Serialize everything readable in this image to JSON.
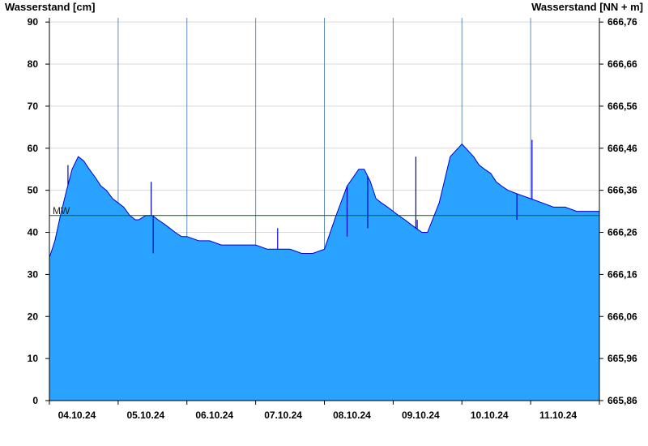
{
  "chart_data": {
    "type": "area",
    "title_left": "Wasserstand [cm]",
    "title_right": "Wasserstand [NN + m]",
    "x_tick_labels": [
      "04.10.24",
      "05.10.24",
      "06.10.24",
      "07.10.24",
      "08.10.24",
      "09.10.24",
      "10.10.24",
      "11.10.24"
    ],
    "x_range_days": [
      0,
      8
    ],
    "y_left_range": [
      0,
      91
    ],
    "y_left_ticks": [
      "0",
      "10",
      "20",
      "30",
      "40",
      "50",
      "60",
      "70",
      "80",
      "90"
    ],
    "y_right_ticks": [
      "665,86",
      "665,96",
      "666,06",
      "666,16",
      "666,26",
      "666,36",
      "666,46",
      "666,56",
      "666,66",
      "666,76"
    ],
    "mw_label": "MW",
    "mw_value": 44,
    "fill_color": "#29a3ff",
    "line_color": "#0000cc",
    "mw_line_color": "#006400",
    "grid": true,
    "series": {
      "x": [
        0.0,
        0.08,
        0.16,
        0.25,
        0.33,
        0.42,
        0.5,
        0.58,
        0.67,
        0.75,
        0.83,
        0.92,
        1.0,
        1.08,
        1.17,
        1.25,
        1.3,
        1.4,
        1.5,
        1.58,
        1.67,
        1.75,
        1.83,
        1.92,
        2.0,
        2.17,
        2.33,
        2.5,
        2.67,
        2.83,
        3.0,
        3.17,
        3.33,
        3.5,
        3.67,
        3.83,
        4.0,
        4.17,
        4.33,
        4.5,
        4.58,
        4.67,
        4.75,
        4.83,
        4.92,
        5.0,
        5.08,
        5.17,
        5.25,
        5.33,
        5.42,
        5.5,
        5.67,
        5.83,
        6.0,
        6.17,
        6.25,
        6.33,
        6.42,
        6.5,
        6.58,
        6.67,
        6.83,
        7.0,
        7.17,
        7.33,
        7.5,
        7.67,
        7.83,
        8.0
      ],
      "y": [
        34,
        38,
        44,
        50,
        55,
        58,
        57,
        55,
        53,
        51,
        50,
        48,
        47,
        46,
        44,
        43,
        43,
        44,
        44,
        43,
        42,
        41,
        40,
        39,
        39,
        38,
        38,
        37,
        37,
        37,
        37,
        36,
        36,
        36,
        35,
        35,
        36,
        44,
        51,
        55,
        55,
        52,
        48,
        47,
        46,
        45,
        44,
        43,
        42,
        41,
        40,
        40,
        47,
        58,
        61,
        58,
        56,
        55,
        54,
        52,
        51,
        50,
        49,
        48,
        47,
        46,
        46,
        45,
        45,
        45
      ]
    },
    "spikes": [
      {
        "x": 0.27,
        "y": 56
      },
      {
        "x": 1.48,
        "y": 52
      },
      {
        "x": 1.51,
        "y": 35
      },
      {
        "x": 3.32,
        "y": 41
      },
      {
        "x": 4.33,
        "y": 39
      },
      {
        "x": 4.63,
        "y": 41
      },
      {
        "x": 5.33,
        "y": 58
      },
      {
        "x": 5.35,
        "y": 43
      },
      {
        "x": 6.8,
        "y": 43
      },
      {
        "x": 7.02,
        "y": 62
      }
    ]
  }
}
